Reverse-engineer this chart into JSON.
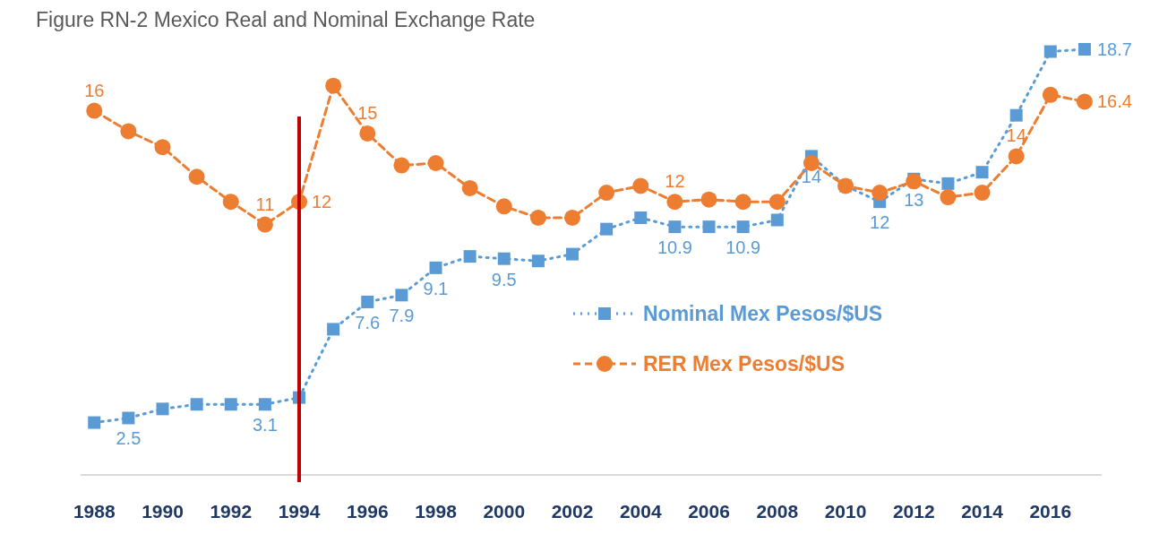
{
  "chart_data": {
    "type": "line",
    "title": "Figure RN-2 Mexico Real and Nominal Exchange Rate",
    "x": [
      1988,
      1989,
      1990,
      1991,
      1992,
      1993,
      1994,
      1995,
      1996,
      1997,
      1998,
      1999,
      2000,
      2001,
      2002,
      2003,
      2004,
      2005,
      2006,
      2007,
      2008,
      2009,
      2010,
      2011,
      2012,
      2013,
      2014,
      2015,
      2016,
      2017
    ],
    "xlim": [
      1987.6,
      2017.5
    ],
    "xticks": [
      1988,
      1990,
      1992,
      1994,
      1996,
      1998,
      2000,
      2002,
      2004,
      2006,
      2008,
      2010,
      2012,
      2014,
      2016
    ],
    "legend": "right",
    "tick_labels": "x",
    "series": [
      {
        "name": "Nominal Mex Pesos/$US",
        "color": "#5b9bd5",
        "marker": "square",
        "line_style": "dotted",
        "values": [
          2.3,
          2.5,
          2.9,
          3.1,
          3.1,
          3.1,
          3.4,
          6.4,
          7.6,
          7.9,
          9.1,
          9.6,
          9.5,
          9.4,
          9.7,
          10.8,
          11.3,
          10.9,
          10.9,
          10.9,
          11.2,
          14,
          12.7,
          12,
          13,
          12.8,
          13.3,
          15.8,
          18.6,
          18.7
        ],
        "value_labels": [
          null,
          "2.5",
          null,
          null,
          null,
          "3.1",
          null,
          null,
          "7.6",
          "7.9",
          "9.1",
          null,
          "9.5",
          null,
          null,
          null,
          null,
          "10.9",
          null,
          "10.9",
          null,
          "14",
          null,
          "12",
          "13",
          null,
          null,
          null,
          null,
          "18.7"
        ]
      },
      {
        "name": "RER Mex Pesos/$US",
        "color": "#ed7d31",
        "marker": "circle",
        "line_style": "dashed",
        "values": [
          16,
          15.1,
          14.4,
          13.1,
          12,
          11,
          12,
          17.1,
          15,
          13.6,
          13.7,
          12.6,
          11.8,
          11.3,
          11.3,
          12.4,
          12.7,
          12,
          12.1,
          12,
          12,
          13.7,
          12.7,
          12.4,
          12.9,
          12.2,
          12.4,
          14,
          16.7,
          16.4
        ],
        "value_labels": [
          "16",
          null,
          null,
          null,
          null,
          "11",
          "12",
          null,
          "15",
          null,
          null,
          null,
          null,
          null,
          null,
          null,
          null,
          "12",
          null,
          null,
          null,
          null,
          null,
          null,
          null,
          null,
          null,
          "14",
          null,
          "16.4"
        ]
      }
    ],
    "ref_lines": [
      {
        "axis": "x",
        "value": 1994,
        "color": "#c00000"
      }
    ]
  }
}
